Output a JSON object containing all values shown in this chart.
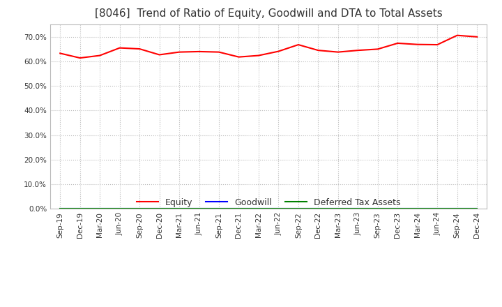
{
  "title": "[8046]  Trend of Ratio of Equity, Goodwill and DTA to Total Assets",
  "x_labels": [
    "Sep-19",
    "Dec-19",
    "Mar-20",
    "Jun-20",
    "Sep-20",
    "Dec-20",
    "Mar-21",
    "Jun-21",
    "Sep-21",
    "Dec-21",
    "Mar-22",
    "Jun-22",
    "Sep-22",
    "Dec-22",
    "Mar-23",
    "Jun-23",
    "Sep-23",
    "Dec-23",
    "Mar-24",
    "Jun-24",
    "Sep-24",
    "Dec-24"
  ],
  "equity": [
    0.633,
    0.614,
    0.624,
    0.655,
    0.651,
    0.627,
    0.638,
    0.64,
    0.638,
    0.618,
    0.624,
    0.641,
    0.668,
    0.645,
    0.638,
    0.645,
    0.65,
    0.674,
    0.669,
    0.668,
    0.706,
    0.7
  ],
  "goodwill": [
    0.0,
    0.0,
    0.0,
    0.0,
    0.0,
    0.0,
    0.0,
    0.0,
    0.0,
    0.0,
    0.0,
    0.0,
    0.0,
    0.0,
    0.0,
    0.0,
    0.0,
    0.0,
    0.0,
    0.0,
    0.0,
    0.0
  ],
  "dta": [
    0.0,
    0.0,
    0.0,
    0.0,
    0.0,
    0.0,
    0.0,
    0.0,
    0.0,
    0.0,
    0.0,
    0.0,
    0.0,
    0.0,
    0.0,
    0.0,
    0.0,
    0.0,
    0.0,
    0.0,
    0.0,
    0.0
  ],
  "equity_color": "#FF0000",
  "goodwill_color": "#0000FF",
  "dta_color": "#008000",
  "ylim": [
    0.0,
    0.75
  ],
  "yticks": [
    0.0,
    0.1,
    0.2,
    0.3,
    0.4,
    0.5,
    0.6,
    0.7
  ],
  "background_color": "#FFFFFF",
  "plot_bg_color": "#FFFFFF",
  "grid_color": "#BBBBBB",
  "title_fontsize": 11,
  "tick_fontsize": 7.5,
  "legend_fontsize": 9
}
